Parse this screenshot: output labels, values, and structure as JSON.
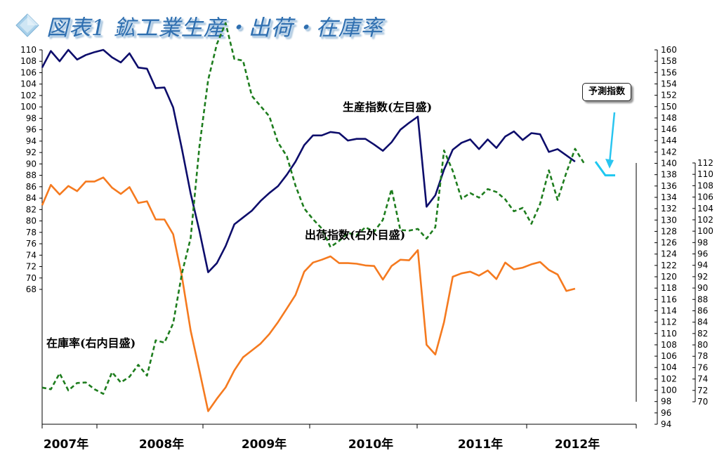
{
  "title": {
    "text": "図表1 鉱工業生産・出荷・在庫率",
    "icon": "diamond-icon",
    "icon_colors": [
      "#cfe6f4",
      "#7fb3d6",
      "#a8d0ea"
    ]
  },
  "chart_data": {
    "type": "line",
    "title": "図表1 鉱工業生産・出荷・在庫率",
    "x_year_labels": [
      "2007年",
      "2008年",
      "2009年",
      "2010年",
      "2011年",
      "2012年"
    ],
    "x_index_range": [
      0,
      68
    ],
    "axes": {
      "left": {
        "min": 68,
        "max": 110,
        "step": 2
      },
      "right_outer": {
        "min": 94,
        "max": 160,
        "step": 2
      },
      "right_inner": {
        "min": 70,
        "max": 112,
        "step": 2
      }
    },
    "annotation": "予測指数",
    "colors": {
      "production": "#0d0d6b",
      "shipments": "#f57a1f",
      "inventory": "#1e7d1e",
      "forecast": "#1ec8f0",
      "annotation_arrow": "#29c5f0"
    },
    "series": [
      {
        "key": "production",
        "name": "生産指数(左目盛)",
        "axis": "left",
        "style": "solid",
        "values": [
          106.9,
          109.8,
          108.0,
          110.0,
          108.3,
          109.1,
          109.6,
          110.0,
          108.7,
          107.8,
          109.4,
          106.9,
          106.7,
          103.3,
          103.4,
          99.9,
          92.6,
          84.8,
          78.3,
          71.0,
          72.6,
          75.6,
          79.4,
          80.6,
          81.8,
          83.5,
          84.9,
          86.1,
          88.1,
          90.4,
          93.3,
          95.0,
          95.0,
          95.6,
          95.4,
          94.1,
          94.4,
          94.4,
          93.4,
          92.3,
          93.8,
          96.0,
          97.2,
          98.3,
          82.5,
          84.5,
          89.0,
          92.5,
          93.7,
          94.3,
          92.6,
          94.3,
          92.8,
          94.8,
          95.7,
          94.2,
          95.4,
          95.2,
          92.1,
          92.6,
          91.5,
          90.4
        ]
      },
      {
        "key": "shipments",
        "name": "出荷指数(右外目盛)",
        "axis": "right_outer",
        "style": "solid",
        "values": [
          132.6,
          136.2,
          134.5,
          136.0,
          135.1,
          136.8,
          136.8,
          137.5,
          135.7,
          134.6,
          135.8,
          133.0,
          133.3,
          130.1,
          130.1,
          127.5,
          120.0,
          110.5,
          103.5,
          96.3,
          98.5,
          100.5,
          103.5,
          105.8,
          107.0,
          108.2,
          109.9,
          112.0,
          114.4,
          116.8,
          120.9,
          122.5,
          123.0,
          123.6,
          122.4,
          122.4,
          122.3,
          122.0,
          121.9,
          119.5,
          121.9,
          123.0,
          122.9,
          124.7,
          108.0,
          106.3,
          112.0,
          120.0,
          120.6,
          120.9,
          120.2,
          121.1,
          119.6,
          122.5,
          121.3,
          121.6,
          122.2,
          122.6,
          121.2,
          120.4,
          117.5,
          117.9
        ]
      },
      {
        "key": "inventory",
        "name": "在庫率(右内目盛)",
        "axis": "right_inner",
        "style": "dashed",
        "values": [
          72.5,
          72.2,
          75.0,
          72.0,
          73.3,
          73.4,
          72.2,
          71.4,
          75.2,
          73.4,
          74.4,
          76.5,
          74.6,
          80.8,
          80.4,
          83.8,
          92.6,
          98.8,
          114.8,
          126.6,
          132.9,
          136.6,
          130.3,
          130.0,
          123.8,
          122.0,
          120.2,
          115.6,
          113.2,
          108.0,
          104.0,
          102.1,
          100.5,
          97.2,
          98.3,
          99.7,
          99.3,
          100.7,
          99.9,
          102.0,
          107.4,
          100.2,
          100.1,
          100.4,
          98.7,
          100.7,
          114.2,
          110.6,
          105.7,
          106.7,
          105.9,
          107.4,
          106.9,
          105.6,
          103.5,
          104.1,
          101.3,
          104.8,
          110.7,
          105.5,
          110.3,
          114.5,
          112.0
        ]
      },
      {
        "key": "forecast",
        "name": "予測指数",
        "axis": "left",
        "style": "solid",
        "values": [
          90.4,
          88.0,
          88.0
        ],
        "x_start_index": 61
      }
    ],
    "series_labels": {
      "production": "生産指数(左目盛)",
      "shipments": "出荷指数(右外目盛)",
      "inventory": "在庫率(右内目盛)"
    },
    "grid": false
  }
}
